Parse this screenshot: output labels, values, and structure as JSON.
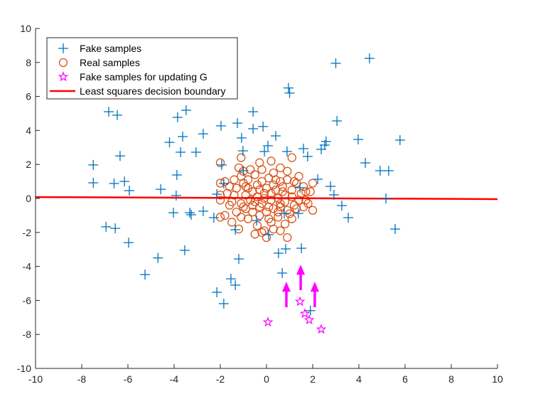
{
  "chart_data": {
    "type": "scatter",
    "title": "",
    "xlabel": "",
    "ylabel": "",
    "xlim": [
      -10,
      10
    ],
    "ylim": [
      -10,
      10
    ],
    "xticks": [
      -10,
      -8,
      -6,
      -4,
      -2,
      0,
      2,
      4,
      6,
      8,
      10
    ],
    "yticks": [
      -10,
      -8,
      -6,
      -4,
      -2,
      0,
      2,
      4,
      6,
      8,
      10
    ],
    "grid": false,
    "legend_position": "top-left",
    "colors": {
      "fake": "#0072BD",
      "real": "#D95319",
      "update": "#FF00FF",
      "boundary": "#FF0000"
    },
    "series": [
      {
        "name": "Fake samples",
        "marker": "plus",
        "points": [
          [
            -7.5,
            1.97
          ],
          [
            -7.5,
            0.92
          ],
          [
            -6.83,
            5.1
          ],
          [
            -6.46,
            4.9
          ],
          [
            -6.6,
            0.88
          ],
          [
            -6.34,
            2.5
          ],
          [
            -6.15,
            1.0
          ],
          [
            -5.94,
            0.46
          ],
          [
            -6.95,
            -1.67
          ],
          [
            -6.55,
            -1.76
          ],
          [
            -5.97,
            -2.6
          ],
          [
            -5.26,
            -4.48
          ],
          [
            -4.7,
            -3.5
          ],
          [
            -4.58,
            0.54
          ],
          [
            -4.2,
            3.3
          ],
          [
            -3.85,
            4.77
          ],
          [
            -3.48,
            5.19
          ],
          [
            -3.63,
            3.64
          ],
          [
            -3.72,
            2.72
          ],
          [
            -3.88,
            1.38
          ],
          [
            -3.91,
            0.17
          ],
          [
            -4.03,
            -0.84
          ],
          [
            -3.32,
            -0.84
          ],
          [
            -3.26,
            -0.96
          ],
          [
            -3.54,
            -3.05
          ],
          [
            -2.74,
            3.8
          ],
          [
            -3.05,
            2.72
          ],
          [
            -2.74,
            -0.75
          ],
          [
            -1.97,
            4.27
          ],
          [
            -1.94,
            1.97
          ],
          [
            -2.15,
            -5.52
          ],
          [
            -1.85,
            -6.19
          ],
          [
            -1.54,
            -4.73
          ],
          [
            -1.35,
            -5.1
          ],
          [
            -1.2,
            -3.56
          ],
          [
            -1.26,
            4.43
          ],
          [
            -1.08,
            3.56
          ],
          [
            -1.02,
            2.8
          ],
          [
            -0.58,
            5.1
          ],
          [
            -0.58,
            4.1
          ],
          [
            -0.15,
            4.23
          ],
          [
            -0.09,
            2.76
          ],
          [
            0.06,
            3.1
          ],
          [
            0.4,
            3.68
          ],
          [
            -1.0,
            1.63
          ],
          [
            -1.85,
            0.88
          ],
          [
            -2.15,
            0.25
          ],
          [
            -2.28,
            -1.13
          ],
          [
            -1.35,
            -1.84
          ],
          [
            -0.43,
            -1.3
          ],
          [
            0.09,
            -2.13
          ],
          [
            0.52,
            -3.22
          ],
          [
            0.77,
            -0.88
          ],
          [
            0.89,
            2.76
          ],
          [
            0.95,
            6.5
          ],
          [
            1.0,
            6.2
          ],
          [
            1.6,
            2.93
          ],
          [
            1.45,
            0.63
          ],
          [
            1.38,
            -0.88
          ],
          [
            0.83,
            -2.97
          ],
          [
            1.51,
            -2.93
          ],
          [
            0.68,
            -4.39
          ],
          [
            1.9,
            -6.6
          ],
          [
            1.78,
            2.47
          ],
          [
            2.22,
            1.13
          ],
          [
            2.37,
            2.89
          ],
          [
            2.52,
            3.14
          ],
          [
            2.58,
            3.35
          ],
          [
            3.05,
            4.56
          ],
          [
            3.0,
            7.95
          ],
          [
            2.77,
            0.71
          ],
          [
            2.92,
            0.21
          ],
          [
            3.26,
            -0.42
          ],
          [
            3.54,
            -1.13
          ],
          [
            3.97,
            3.47
          ],
          [
            4.28,
            2.09
          ],
          [
            4.46,
            8.24
          ],
          [
            4.92,
            1.63
          ],
          [
            5.29,
            1.63
          ],
          [
            5.17,
            0.0
          ],
          [
            5.57,
            -1.8
          ],
          [
            5.78,
            3.43
          ]
        ]
      },
      {
        "name": "Real samples",
        "marker": "circle",
        "points": [
          [
            -2.0,
            2.1
          ],
          [
            -1.1,
            2.4
          ],
          [
            -0.3,
            2.1
          ],
          [
            1.1,
            2.4
          ],
          [
            0.6,
            1.8
          ],
          [
            -1.0,
            1.6
          ],
          [
            -1.4,
            1.1
          ],
          [
            -2.0,
            0.9
          ],
          [
            -1.8,
            1.0
          ],
          [
            -1.1,
            1.3
          ],
          [
            -0.8,
            1.1
          ],
          [
            -0.5,
            1.4
          ],
          [
            -0.2,
            1.0
          ],
          [
            0.1,
            1.2
          ],
          [
            0.3,
            0.8
          ],
          [
            0.6,
            1.0
          ],
          [
            0.9,
            1.1
          ],
          [
            1.3,
            0.9
          ],
          [
            1.6,
            0.7
          ],
          [
            2.0,
            0.9
          ],
          [
            1.9,
            0.4
          ],
          [
            1.7,
            0.4
          ],
          [
            1.1,
            0.5
          ],
          [
            0.7,
            0.4
          ],
          [
            0.4,
            0.5
          ],
          [
            0.0,
            0.6
          ],
          [
            -0.3,
            0.5
          ],
          [
            -0.6,
            0.4
          ],
          [
            -0.9,
            0.7
          ],
          [
            -1.3,
            0.6
          ],
          [
            -1.7,
            0.3
          ],
          [
            -2.0,
            0.2
          ],
          [
            -2.0,
            -0.1
          ],
          [
            -1.5,
            -0.2
          ],
          [
            -1.1,
            -0.3
          ],
          [
            -0.7,
            -0.1
          ],
          [
            -0.4,
            0.1
          ],
          [
            -0.1,
            0.0
          ],
          [
            0.2,
            -0.1
          ],
          [
            0.5,
            0.0
          ],
          [
            0.8,
            -0.2
          ],
          [
            1.1,
            0.1
          ],
          [
            1.4,
            -0.1
          ],
          [
            1.8,
            -0.3
          ],
          [
            2.0,
            -0.7
          ],
          [
            1.6,
            -0.5
          ],
          [
            1.2,
            -0.4
          ],
          [
            0.9,
            -0.7
          ],
          [
            0.6,
            -0.5
          ],
          [
            0.3,
            -0.6
          ],
          [
            0.0,
            -0.8
          ],
          [
            -0.3,
            -0.5
          ],
          [
            -0.6,
            -0.8
          ],
          [
            -0.9,
            -0.6
          ],
          [
            -1.3,
            -0.8
          ],
          [
            -1.8,
            -1.0
          ],
          [
            -2.0,
            -1.1
          ],
          [
            -1.5,
            -1.4
          ],
          [
            -1.2,
            -1.8
          ],
          [
            -0.8,
            -1.2
          ],
          [
            -0.4,
            -1.6
          ],
          [
            -0.1,
            -1.9
          ],
          [
            0.2,
            -1.4
          ],
          [
            0.5,
            -1.1
          ],
          [
            0.8,
            -1.5
          ],
          [
            1.1,
            -1.2
          ],
          [
            0.6,
            -1.9
          ],
          [
            0.0,
            -2.3
          ],
          [
            -0.5,
            -2.1
          ],
          [
            -0.2,
            -2.0
          ],
          [
            0.1,
            -1.2
          ],
          [
            -0.7,
            1.7
          ],
          [
            -1.2,
            1.8
          ],
          [
            0.3,
            1.5
          ],
          [
            0.9,
            1.6
          ],
          [
            1.4,
            1.3
          ],
          [
            -0.4,
            0.8
          ],
          [
            0.2,
            0.3
          ],
          [
            -1.6,
            0.7
          ],
          [
            1.5,
            0.3
          ],
          [
            -0.9,
            0.2
          ],
          [
            0.6,
            -0.3
          ],
          [
            -0.2,
            -0.3
          ],
          [
            1.0,
            -0.9
          ],
          [
            -1.1,
            -1.1
          ],
          [
            -0.6,
            -0.4
          ],
          [
            0.4,
            1.1
          ],
          [
            -0.1,
            0.3
          ],
          [
            0.8,
            0.2
          ],
          [
            -1.4,
            0.2
          ],
          [
            1.3,
            -0.6
          ],
          [
            -0.3,
            -1.0
          ],
          [
            0.1,
            -0.5
          ],
          [
            -0.8,
            0.6
          ],
          [
            0.3,
            -1.8
          ],
          [
            -1.0,
            -0.5
          ],
          [
            1.7,
            -0.1
          ],
          [
            -0.5,
            -0.2
          ],
          [
            0.7,
            0.7
          ],
          [
            -0.2,
            1.7
          ],
          [
            0.2,
            2.2
          ],
          [
            -1.6,
            -0.4
          ],
          [
            0.9,
            -2.3
          ],
          [
            -1.0,
            0.9
          ],
          [
            0.5,
            -0.8
          ],
          [
            1.2,
            1.0
          ]
        ]
      },
      {
        "name": "Fake samples for updating G",
        "marker": "star",
        "points": [
          [
            0.06,
            -7.28
          ],
          [
            1.45,
            -6.07
          ],
          [
            1.66,
            -6.78
          ],
          [
            1.85,
            -7.15
          ],
          [
            2.37,
            -7.7
          ]
        ]
      },
      {
        "name": "Least squares decision boundary",
        "marker": "line",
        "points": [
          [
            -10,
            0.08
          ],
          [
            10,
            -0.04
          ]
        ]
      }
    ],
    "arrows": [
      [
        [
          0.86,
          -6.4
        ],
        [
          0.86,
          -4.9
        ]
      ],
      [
        [
          1.48,
          -5.4
        ],
        [
          1.48,
          -3.9
        ]
      ],
      [
        [
          2.09,
          -6.4
        ],
        [
          2.09,
          -4.9
        ]
      ]
    ]
  }
}
